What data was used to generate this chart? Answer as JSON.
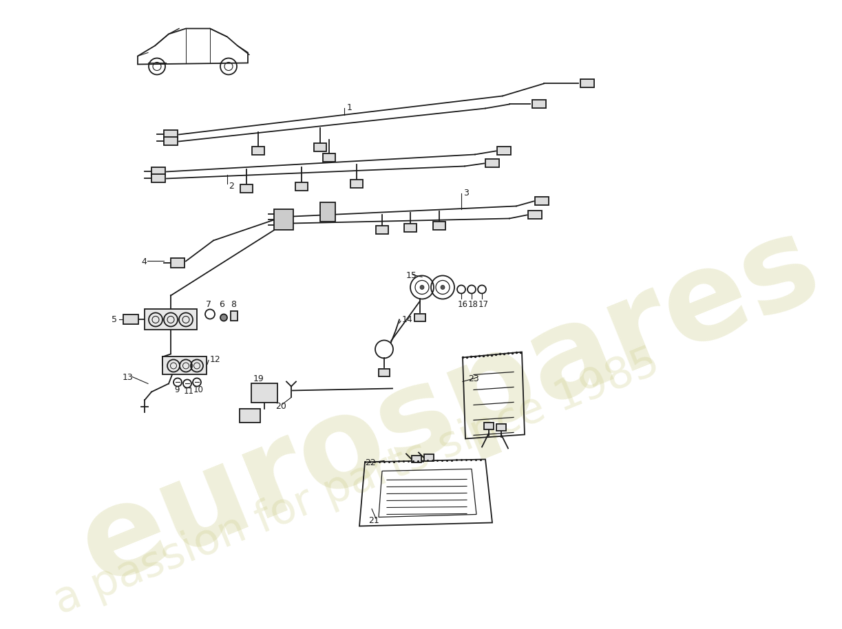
{
  "bg": "#ffffff",
  "lc": "#1a1a1a",
  "wm1": "eurospares",
  "wm2": "a passion for parts since 1985",
  "wm_color": "#cccc88"
}
